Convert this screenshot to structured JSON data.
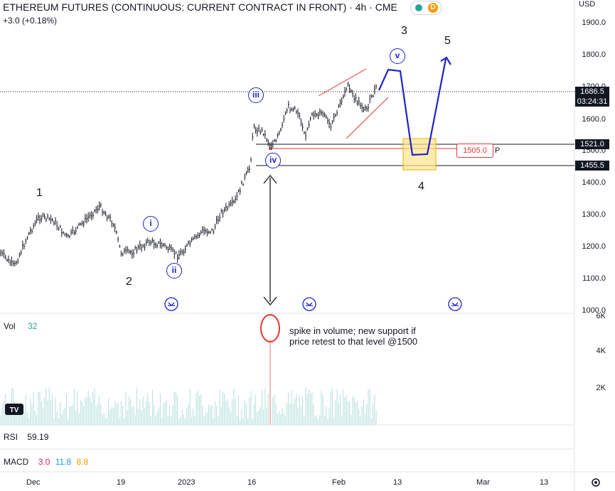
{
  "header": {
    "title": "ETHEREUM FUTURES (CONTINUOUS: CURRENT CONTRACT IN FRONT) · 4h · CME",
    "change": "+3.0 (+0.18%)",
    "badge_letter": "D",
    "currency": "USD"
  },
  "price_axis": {
    "labels": [
      "1900.0",
      "1800.0",
      "1700.0",
      "1600.0",
      "1500.0",
      "1400.0",
      "1300.0",
      "1200.0",
      "1100.0",
      "1000.0"
    ],
    "last_price": "1686.5",
    "countdown": "03:24:31",
    "level_1521": "1521.0",
    "level_1455": "1455.5"
  },
  "volume_axis": {
    "labels": [
      "6K",
      "4K",
      "2K"
    ]
  },
  "time_axis": {
    "labels": [
      "Dec",
      "19",
      "2023",
      "16",
      "Feb",
      "13",
      "Mar",
      "13"
    ]
  },
  "waves": {
    "major": [
      "1",
      "2",
      "3",
      "4",
      "5"
    ],
    "minor": [
      "i",
      "ii",
      "iii",
      "iv",
      "v"
    ]
  },
  "annotation": {
    "volume_note": "spike in volume; new support if price retest to that level @1500",
    "target_label": "1505.0",
    "target_suffix": "P"
  },
  "indicators": {
    "vol_label": "Vol",
    "vol_value": "32",
    "rsi_label": "RSI",
    "rsi_value": "59.19",
    "macd_label": "MACD",
    "macd_values": [
      "3.0",
      "11.8",
      "8.8"
    ]
  },
  "colors": {
    "projection": "#1e22c8",
    "support_red": "#e53935",
    "zone_fill": "#ffe48a",
    "zone_border": "#e0b300",
    "volume_bar": "#b2dfdb",
    "vol_value": "#26a69a",
    "macd_1": "#e91e63",
    "macd_2": "#2196f3",
    "macd_3": "#ff9800",
    "price_tag": "#131722"
  }
}
